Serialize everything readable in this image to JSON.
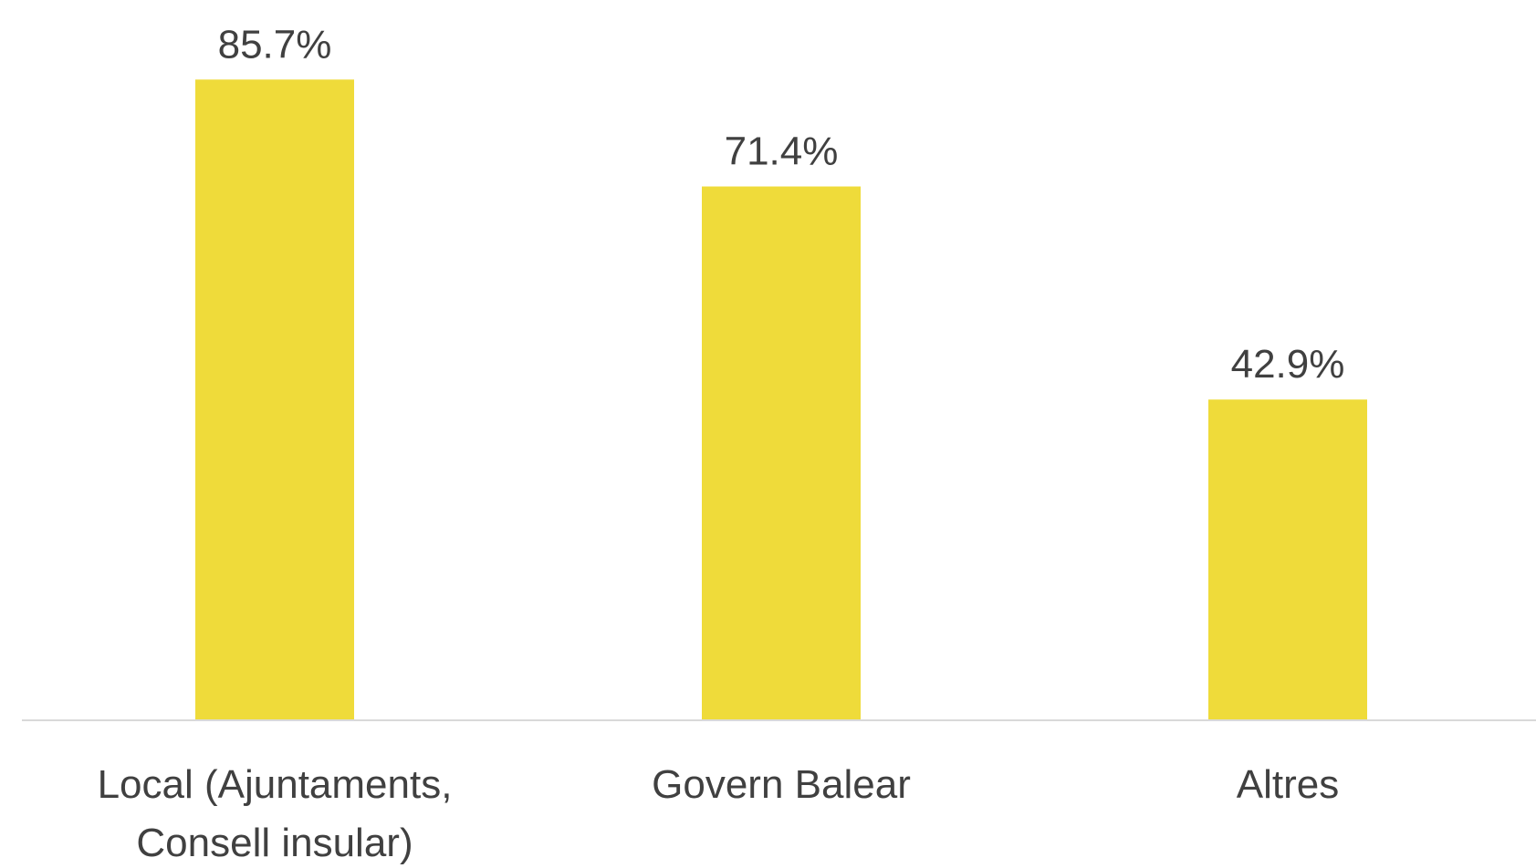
{
  "chart_data": {
    "type": "bar",
    "categories": [
      [
        "Local (Ajuntaments,",
        "Consell insular)"
      ],
      [
        "Govern Balear"
      ],
      [
        "Altres"
      ]
    ],
    "values": [
      85.7,
      71.4,
      42.9
    ],
    "value_labels": [
      "85.7%",
      "71.4%",
      "42.9%"
    ],
    "title": "",
    "xlabel": "",
    "ylabel": "",
    "ylim": [
      0,
      100
    ],
    "grid": false,
    "legend": "none",
    "bar_color": "#EFDB3A",
    "axis_color": "#D9D9D9",
    "text_color": "#404040"
  }
}
